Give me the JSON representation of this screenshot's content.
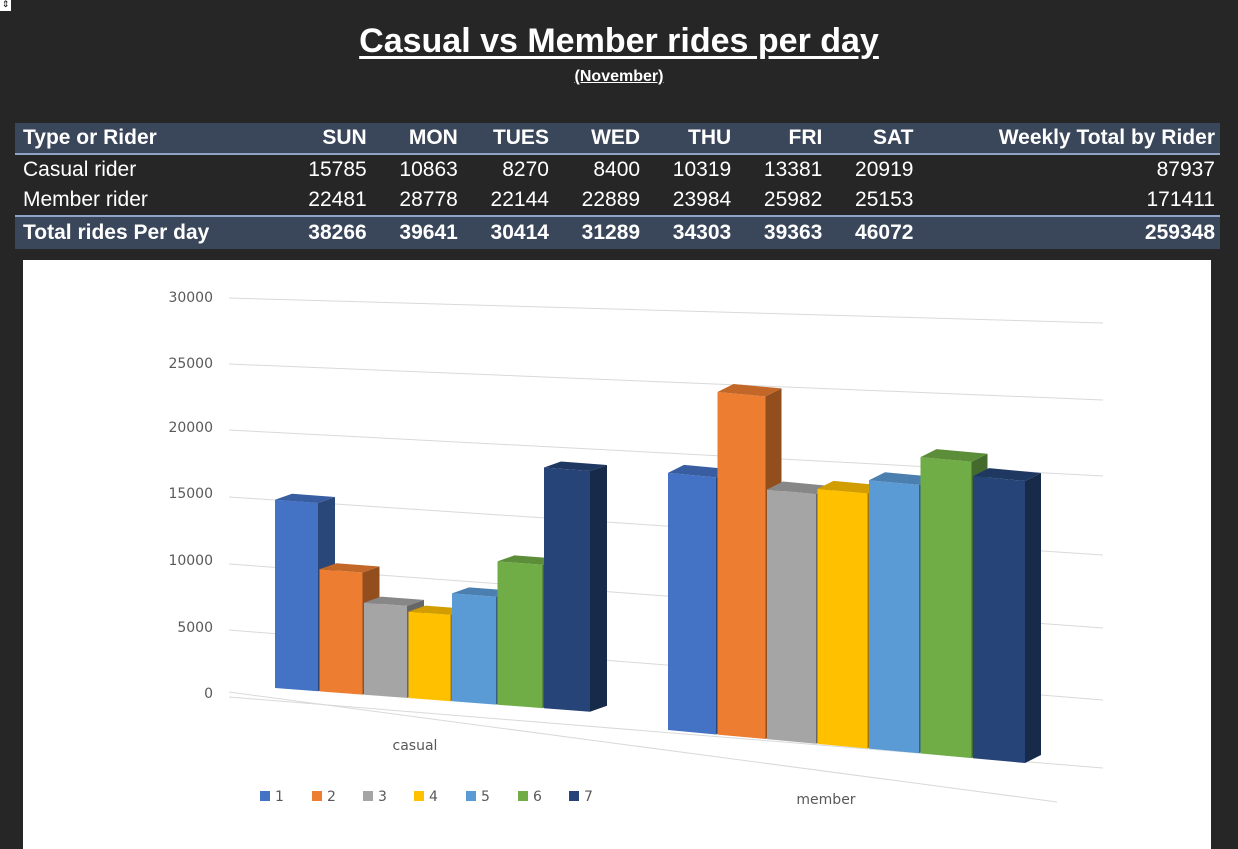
{
  "title": "Casual vs Member rides per day",
  "subtitle": "(November)",
  "table": {
    "headers": [
      "Type or Rider",
      "SUN",
      "MON",
      "TUES",
      "WED",
      "THU",
      "FRI",
      "SAT",
      "Weekly Total by Rider"
    ],
    "rows": [
      {
        "label": "Casual rider",
        "values": [
          "15785",
          "10863",
          "8270",
          "8400",
          "10319",
          "13381",
          "20919"
        ],
        "total": "87937"
      },
      {
        "label": "Member rider",
        "values": [
          "22481",
          "28778",
          "22144",
          "22889",
          "23984",
          "25982",
          "25153"
        ],
        "total": "171411"
      }
    ],
    "footer": {
      "label": "Total rides Per day",
      "values": [
        "38266",
        "39641",
        "30414",
        "31289",
        "34303",
        "39363",
        "46072"
      ],
      "total": "259348"
    }
  },
  "chart_data": {
    "type": "bar",
    "categories": [
      "casual",
      "member"
    ],
    "series": [
      {
        "name": "1",
        "values": [
          15500,
          20000
        ],
        "color": "#4472C4"
      },
      {
        "name": "2",
        "values": [
          10000,
          26500
        ],
        "color": "#ED7D31"
      },
      {
        "name": "3",
        "values": [
          7500,
          19200
        ],
        "color": "#A5A5A5"
      },
      {
        "name": "4",
        "values": [
          7000,
          19500
        ],
        "color": "#FFC000"
      },
      {
        "name": "5",
        "values": [
          8700,
          20400
        ],
        "color": "#5B9BD5"
      },
      {
        "name": "6",
        "values": [
          11500,
          22400
        ],
        "color": "#70AD47"
      },
      {
        "name": "7",
        "values": [
          19200,
          21200
        ],
        "color": "#264478"
      }
    ],
    "yticks": [
      "0",
      "5000",
      "10000",
      "15000",
      "20000",
      "25000",
      "30000"
    ],
    "ylim": [
      0,
      30000
    ],
    "grid": true,
    "legend": "bottom-left",
    "view": "3D clustered column"
  }
}
